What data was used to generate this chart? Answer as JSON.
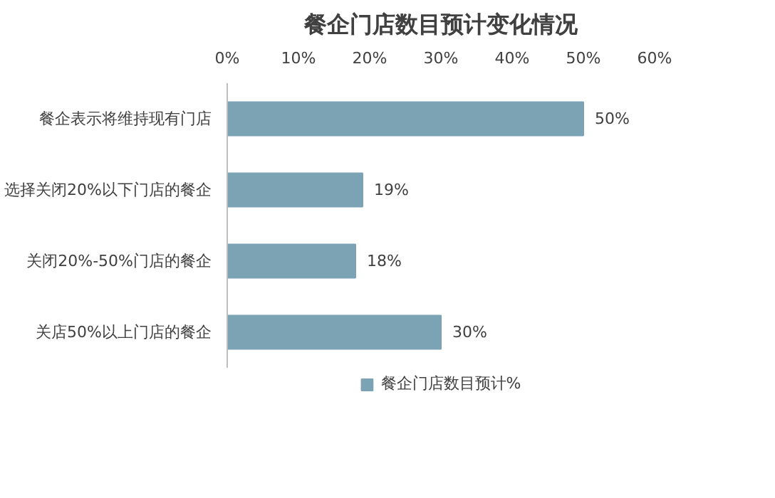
{
  "chart_data": {
    "type": "bar",
    "orientation": "horizontal",
    "title": "餐企门店数目预计变化情况",
    "categories": [
      "餐企表示将维持现有门店",
      "选择关闭20%以下门店的餐企",
      "关闭20%-50%门店的餐企",
      "关店50%以上门店的餐企"
    ],
    "series": [
      {
        "name": "餐企门店数目预计%",
        "color": "#7ba3b4",
        "values": [
          50,
          19,
          18,
          30
        ],
        "value_labels": [
          "50%",
          "19%",
          "18%",
          "30%"
        ]
      }
    ],
    "xlim": [
      0,
      60
    ],
    "xticks": [
      {
        "value": 0,
        "label": "0%"
      },
      {
        "value": 10,
        "label": "10%"
      },
      {
        "value": 20,
        "label": "20%"
      },
      {
        "value": 30,
        "label": "30%"
      },
      {
        "value": 40,
        "label": "40%"
      },
      {
        "value": 50,
        "label": "50%"
      },
      {
        "value": 60,
        "label": "60%"
      }
    ],
    "legend": "bottom",
    "grid": false
  }
}
